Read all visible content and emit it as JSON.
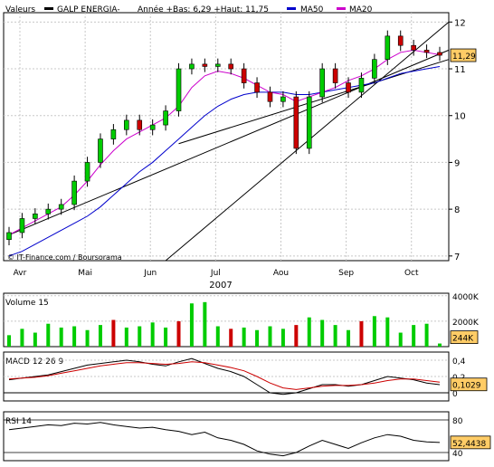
{
  "chart_data": [
    {
      "type": "candlestick",
      "panel": "price",
      "legend": {
        "symbol_label": "Valeurs",
        "instrument": "GALP ENERGIA-",
        "year_stats": "Année +Bas: 6,29 +Haut: 11,75",
        "ma50_label": "MA50",
        "ma20_label": "MA20"
      },
      "credit": "© IT-Finance.com / Boursorama",
      "year_label": "2007",
      "x_tick_labels": [
        "Avr",
        "Mai",
        "Jun",
        "Jul",
        "Aou",
        "Sep",
        "Oct"
      ],
      "y_tick_labels": [
        "12",
        "11",
        "10",
        "9",
        "8",
        "7"
      ],
      "ylim": [
        6.9,
        12.2
      ],
      "last_value": 11.29,
      "last_value_label": "11,29",
      "colors": {
        "up": "#00cc00",
        "down": "#cc0000",
        "ma50": "#0000cc",
        "ma20": "#cc00cc",
        "trend": "#000000"
      },
      "x_dates": [
        "2007-04-02",
        "2007-04-06",
        "2007-04-12",
        "2007-04-18",
        "2007-04-24",
        "2007-04-30",
        "2007-05-06",
        "2007-05-12",
        "2007-05-18",
        "2007-05-24",
        "2007-05-30",
        "2007-06-05",
        "2007-06-11",
        "2007-06-17",
        "2007-06-23",
        "2007-06-29",
        "2007-07-05",
        "2007-07-11",
        "2007-07-17",
        "2007-07-23",
        "2007-07-29",
        "2007-08-04",
        "2007-08-10",
        "2007-08-16",
        "2007-08-22",
        "2007-08-28",
        "2007-09-03",
        "2007-09-09",
        "2007-09-15",
        "2007-09-21",
        "2007-09-27",
        "2007-10-03",
        "2007-10-09",
        "2007-10-15"
      ],
      "close": [
        7.5,
        7.8,
        7.9,
        8.0,
        8.1,
        8.6,
        9.0,
        9.5,
        9.7,
        9.9,
        9.7,
        9.8,
        10.1,
        11.0,
        11.1,
        11.05,
        11.1,
        11.0,
        10.7,
        10.5,
        10.3,
        10.4,
        9.3,
        10.4,
        11.0,
        10.7,
        10.5,
        10.8,
        11.2,
        11.7,
        11.5,
        11.4,
        11.35,
        11.29
      ],
      "ma20": [
        7.45,
        7.6,
        7.75,
        7.9,
        8.05,
        8.3,
        8.6,
        8.95,
        9.25,
        9.5,
        9.65,
        9.8,
        9.95,
        10.2,
        10.6,
        10.85,
        10.95,
        10.9,
        10.8,
        10.65,
        10.5,
        10.45,
        10.3,
        10.4,
        10.5,
        10.6,
        10.75,
        10.85,
        11.0,
        11.2,
        11.35,
        11.4,
        11.35,
        11.3
      ],
      "ma50": [
        7.0,
        7.1,
        7.25,
        7.4,
        7.55,
        7.7,
        7.85,
        8.05,
        8.3,
        8.55,
        8.8,
        9.0,
        9.25,
        9.5,
        9.75,
        10.0,
        10.2,
        10.35,
        10.45,
        10.5,
        10.5,
        10.5,
        10.45,
        10.45,
        10.5,
        10.55,
        10.6,
        10.65,
        10.7,
        10.8,
        10.9,
        10.95,
        11.0,
        11.05
      ]
    },
    {
      "type": "bar",
      "panel": "volume",
      "label": "Volume 15",
      "y_tick_labels": [
        "4000K",
        "2000K"
      ],
      "ylim": [
        0,
        4200
      ],
      "last_value_label": "244K",
      "values": [
        900,
        1400,
        1100,
        1800,
        1500,
        1600,
        1300,
        1700,
        2100,
        1500,
        1600,
        1900,
        1500,
        2000,
        3400,
        3500,
        1600,
        1400,
        1500,
        1300,
        1600,
        1400,
        1700,
        2300,
        2100,
        1700,
        1300,
        2000,
        2400,
        2300,
        1100,
        1700,
        1800,
        244
      ],
      "up_flags": [
        true,
        true,
        true,
        true,
        true,
        true,
        true,
        true,
        false,
        true,
        true,
        true,
        true,
        false,
        true,
        true,
        true,
        false,
        true,
        true,
        true,
        true,
        false,
        true,
        true,
        true,
        true,
        false,
        true,
        true,
        true,
        true,
        true,
        true
      ]
    },
    {
      "type": "line",
      "panel": "macd",
      "label": "MACD 12 26 9",
      "y_tick_labels": [
        "0,4",
        "0,2",
        "0"
      ],
      "ylim": [
        -0.1,
        0.5
      ],
      "last_value_label": "0,1029",
      "macd": [
        0.16,
        0.18,
        0.2,
        0.22,
        0.26,
        0.3,
        0.34,
        0.36,
        0.38,
        0.4,
        0.38,
        0.35,
        0.33,
        0.38,
        0.42,
        0.36,
        0.3,
        0.26,
        0.2,
        0.1,
        0.0,
        -0.02,
        0.0,
        0.05,
        0.1,
        0.1,
        0.08,
        0.1,
        0.15,
        0.2,
        0.18,
        0.16,
        0.12,
        0.1
      ],
      "signal": [
        0.17,
        0.18,
        0.19,
        0.21,
        0.24,
        0.27,
        0.3,
        0.33,
        0.35,
        0.37,
        0.37,
        0.36,
        0.35,
        0.36,
        0.38,
        0.37,
        0.34,
        0.31,
        0.27,
        0.2,
        0.12,
        0.06,
        0.04,
        0.06,
        0.08,
        0.09,
        0.09,
        0.1,
        0.12,
        0.15,
        0.17,
        0.17,
        0.15,
        0.13
      ]
    },
    {
      "type": "line",
      "panel": "rsi",
      "label": "RSI 14",
      "y_tick_labels": [
        "80",
        "40"
      ],
      "ylim": [
        30,
        90
      ],
      "last_value_label": "52,4438",
      "values": [
        68,
        70,
        72,
        74,
        73,
        76,
        75,
        77,
        74,
        72,
        70,
        71,
        68,
        66,
        62,
        65,
        58,
        55,
        50,
        42,
        38,
        36,
        40,
        48,
        55,
        50,
        45,
        52,
        58,
        62,
        60,
        55,
        53,
        52.4
      ]
    }
  ]
}
